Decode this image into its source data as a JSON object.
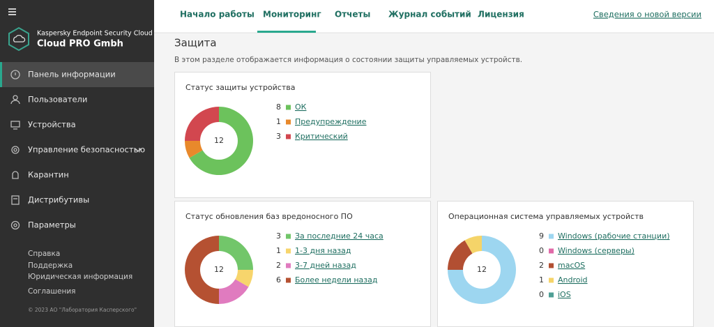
{
  "sidebar": {
    "product": "Kaspersky Endpoint Security Cloud",
    "company": "Cloud PRO Gmbh",
    "menu": [
      "Панель информации",
      "Пользователи",
      "Устройства",
      "Управление безопасностью",
      "Карантин",
      "Дистрибутивы",
      "Параметры"
    ],
    "links": [
      "Справка",
      "Поддержка",
      "Юридическая информация",
      "Соглашения"
    ],
    "copyright": "© 2023 АО \"Лаборатория Касперского\""
  },
  "tabs": [
    "Начало работы",
    "Мониторинг",
    "Отчеты",
    "Журнал событий",
    "Лицензия"
  ],
  "whats_new": "Сведения о новой версии",
  "section": {
    "title": "Защита",
    "description": "В этом разделе отображается информация о состоянии защиты управляемых устройств."
  },
  "widgets": [
    {
      "title": "Статус защиты устройства",
      "total": 12,
      "items": [
        {
          "count": 8,
          "label": "ОК",
          "color": "#6cc25c"
        },
        {
          "count": 1,
          "label": "Предупреждение",
          "color": "#e8892b"
        },
        {
          "count": 3,
          "label": "Критический",
          "color": "#d2474f"
        }
      ]
    },
    {
      "title": "Статус обновления баз вредоносного ПО",
      "total": 12,
      "items": [
        {
          "count": 3,
          "label": "За последние 24 часа",
          "color": "#72c66a"
        },
        {
          "count": 1,
          "label": "1-3 дня назад",
          "color": "#f7d56c"
        },
        {
          "count": 2,
          "label": "3-7 дней назад",
          "color": "#e07bbf"
        },
        {
          "count": 6,
          "label": "Более недели назад",
          "color": "#b55132"
        }
      ]
    },
    {
      "title": "Операционная система управляемых устройств",
      "total": 12,
      "items": [
        {
          "count": 9,
          "label": "Windows (рабочие станции)",
          "color": "#9dd6f0"
        },
        {
          "count": 0,
          "label": "Windows (серверы)",
          "color": "#e06aa8"
        },
        {
          "count": 2,
          "label": "macOS",
          "color": "#b24f32"
        },
        {
          "count": 1,
          "label": "Android",
          "color": "#f5d469"
        },
        {
          "count": 0,
          "label": "iOS",
          "color": "#4f9f95"
        }
      ]
    }
  ]
}
